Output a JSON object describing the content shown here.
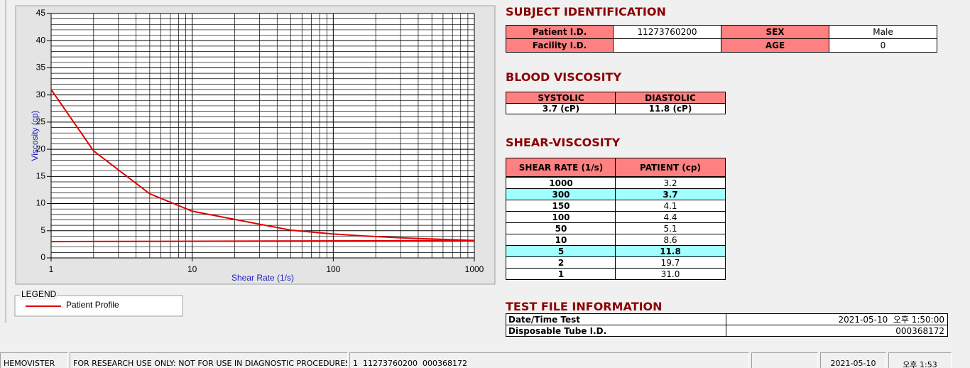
{
  "chart_data": {
    "type": "line",
    "x_label": "Shear Rate (1/s)",
    "y_label": "Viscosity (cp)",
    "xscale": "log",
    "xlim": [
      1,
      1000
    ],
    "xticks": [
      1,
      10,
      100,
      1000
    ],
    "ylim": [
      0,
      45
    ],
    "yticks": [
      0,
      5,
      10,
      15,
      20,
      25,
      30,
      35,
      40,
      45
    ],
    "grid": true,
    "legend_title": "LEGEND",
    "series": [
      {
        "name": "Patient Profile",
        "color": "#e00000",
        "x": [
          1,
          2,
          5,
          10,
          50,
          100,
          150,
          300,
          1000
        ],
        "values": [
          31.0,
          19.7,
          11.8,
          8.6,
          5.1,
          4.4,
          4.1,
          3.7,
          3.2
        ]
      },
      {
        "color": "#e00000",
        "x": [
          1,
          1000
        ],
        "values": [
          3.0,
          3.2
        ]
      }
    ]
  },
  "subject": {
    "title": "SUBJECT IDENTIFICATION",
    "rows": [
      [
        "Patient I.D.",
        "11273760200",
        "SEX",
        "Male"
      ],
      [
        "Facility I.D.",
        null,
        "AGE",
        "0"
      ]
    ]
  },
  "blood_viscosity": {
    "title": "BLOOD VISCOSITY",
    "headers": [
      "SYSTOLIC",
      "DIASTOLIC"
    ],
    "values": [
      "3.7 (cP)",
      "11.8 (cP)"
    ]
  },
  "shear_viscosity": {
    "title": "SHEAR-VISCOSITY",
    "headers": [
      "SHEAR RATE (1/s)",
      "PATIENT (cp)"
    ],
    "rows": [
      {
        "rate": "1000",
        "patient": "3.2",
        "highlight": false
      },
      {
        "rate": "300",
        "patient": "3.7",
        "highlight": true
      },
      {
        "rate": "150",
        "patient": "4.1",
        "highlight": false
      },
      {
        "rate": "100",
        "patient": "4.4",
        "highlight": false
      },
      {
        "rate": "50",
        "patient": "5.1",
        "highlight": false
      },
      {
        "rate": "10",
        "patient": "8.6",
        "highlight": false
      },
      {
        "rate": "5",
        "patient": "11.8",
        "highlight": true
      },
      {
        "rate": "2",
        "patient": "19.7",
        "highlight": false
      },
      {
        "rate": "1",
        "patient": "31.0",
        "highlight": false
      }
    ]
  },
  "test_file": {
    "title": "TEST FILE INFORMATION",
    "rows": [
      [
        "Date/Time Test",
        "2021-05-10  오후 1:50:00"
      ],
      [
        "Disposable Tube I.D.",
        "000368172"
      ]
    ]
  },
  "status_bar": [
    "HEMOVISTER",
    "FOR RESEARCH USE ONLY: NOT FOR USE IN DIAGNOSTIC PROCEDURES",
    "1  11273760200  000368172",
    "2021-05-10",
    "오후 1:53"
  ]
}
